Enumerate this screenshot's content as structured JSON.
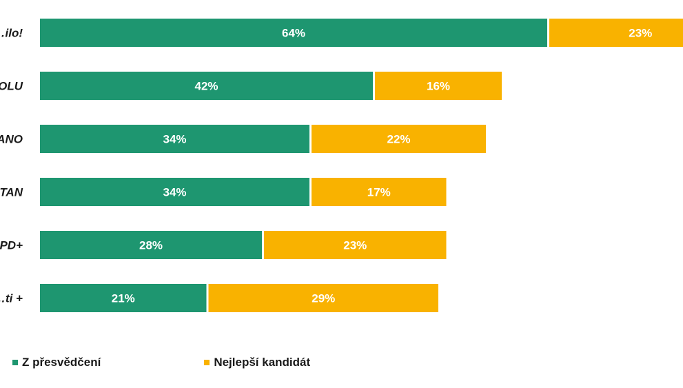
{
  "chart_data": {
    "type": "bar",
    "orientation": "horizontal",
    "stacked": true,
    "categories": [
      "…ilo!",
      "…OLU",
      "…ANO",
      "…TAN",
      "…PD+",
      "…ti +"
    ],
    "series": [
      {
        "name": "Z přesvědčení",
        "values": [
          64,
          42,
          34,
          34,
          28,
          21
        ],
        "color": "#1e9670"
      },
      {
        "name": "Nejlepší kandidát",
        "values": [
          23,
          16,
          22,
          17,
          23,
          29
        ],
        "color": "#f9b200"
      }
    ],
    "value_suffix": "%",
    "xlim": [
      0,
      100
    ],
    "grid": false,
    "legend_position": "bottom-left"
  }
}
